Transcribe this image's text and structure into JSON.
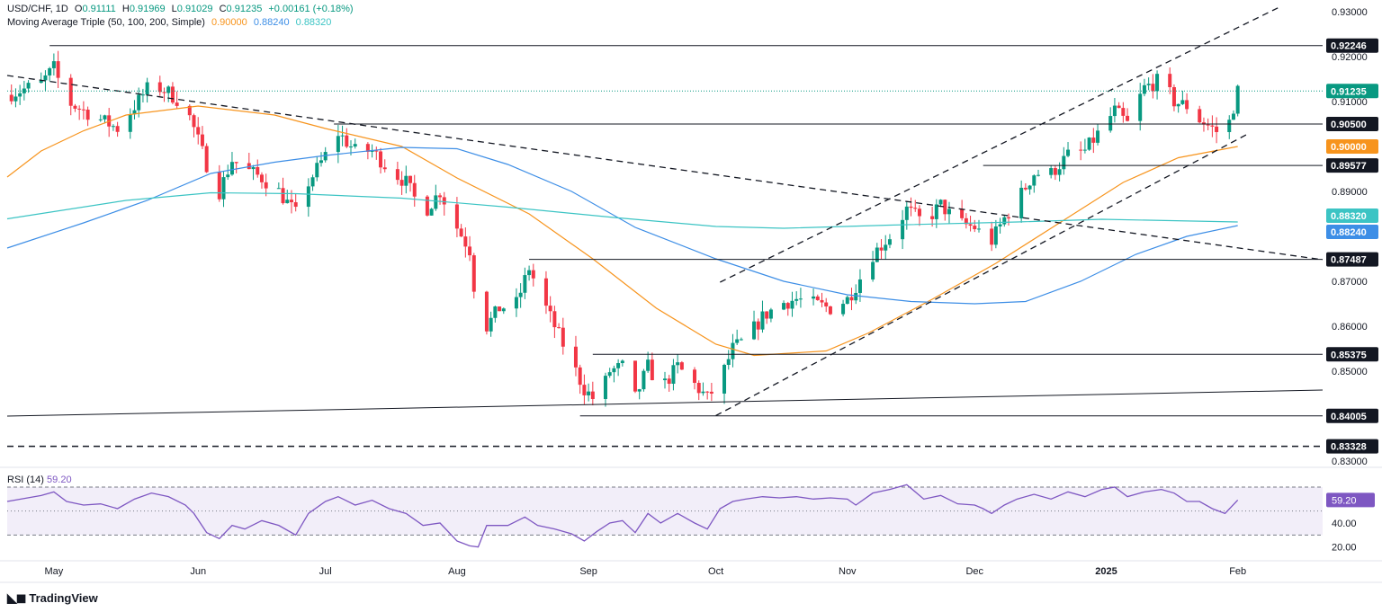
{
  "header": {
    "symbol": "USD/CHF, 1D",
    "open_label": "O",
    "open": "0.91111",
    "high_label": "H",
    "high": "0.91969",
    "low_label": "L",
    "low": "0.91029",
    "close_label": "C",
    "close": "0.91235",
    "change": "+0.00161 (+0.18%)",
    "ma_label": "Moving Average Triple (50, 100, 200, Simple)",
    "ma50_value": "0.90000",
    "ma100_value": "0.88240",
    "ma200_value": "0.88320"
  },
  "rsi_header": {
    "label": "RSI (14)",
    "value": "59.20"
  },
  "branding": {
    "name": "TradingView"
  },
  "colors": {
    "up": "#089981",
    "down": "#f23645",
    "ma50": "#f7941d",
    "ma100": "#3d8ee6",
    "ma200": "#3cc4c4",
    "rsi": "#7e57c2",
    "rsi_band": "#ede7f6",
    "last_price": "#089981",
    "level": "#131722"
  },
  "chart_data": {
    "type": "candlestick",
    "title": "USD/CHF, 1D",
    "y_range": [
      0.829,
      0.931
    ],
    "y_ticks": [
      "0.93000",
      "0.92000",
      "0.91000",
      "0.90000",
      "0.89000",
      "0.87000",
      "0.86000",
      "0.85000",
      "0.83000"
    ],
    "x_ticks": [
      "May",
      "Jun",
      "Jul",
      "Aug",
      "Sep",
      "Oct",
      "Nov",
      "Dec",
      "2025",
      "Feb"
    ],
    "x_tick_days": [
      3,
      37,
      67,
      98,
      129,
      159,
      190,
      220,
      251,
      282
    ],
    "day_range": [
      -8,
      302
    ],
    "price_labels": [
      {
        "value": 0.92246,
        "text": "0.92246",
        "style": "dark"
      },
      {
        "value": 0.91235,
        "text": "0.91235",
        "style": "last"
      },
      {
        "value": 0.905,
        "text": "0.90500",
        "style": "dark"
      },
      {
        "value": 0.9,
        "text": "0.90000",
        "style": "ma50"
      },
      {
        "value": 0.89577,
        "text": "0.89577",
        "style": "dark"
      },
      {
        "value": 0.8832,
        "text": "0.88320",
        "style": "ma200"
      },
      {
        "value": 0.8824,
        "text": "0.88240",
        "style": "ma100"
      },
      {
        "value": 0.87487,
        "text": "0.87487",
        "style": "dark"
      },
      {
        "value": 0.85375,
        "text": "0.85375",
        "style": "dark"
      },
      {
        "value": 0.84005,
        "text": "0.84005",
        "style": "dark"
      },
      {
        "value": 0.83328,
        "text": "0.83328",
        "style": "dark"
      }
    ],
    "horizontal_levels": [
      {
        "value": 0.92246,
        "from_day": 2,
        "to_day": 302,
        "dash": false
      },
      {
        "value": 0.905,
        "from_day": 69,
        "to_day": 302,
        "dash": false
      },
      {
        "value": 0.89577,
        "from_day": 222,
        "to_day": 302,
        "dash": false
      },
      {
        "value": 0.87487,
        "from_day": 115,
        "to_day": 302,
        "dash": false
      },
      {
        "value": 0.85375,
        "from_day": 130,
        "to_day": 302,
        "dash": false
      },
      {
        "value": 0.84005,
        "from_day": 127,
        "to_day": 302,
        "dash": false
      },
      {
        "value": 0.83328,
        "from_day": -8,
        "to_day": 302,
        "dash": true
      }
    ],
    "trendlines": [
      {
        "from": [
          -8,
          0.9158
        ],
        "to": [
          302,
          0.8748
        ],
        "dash": true
      },
      {
        "from": [
          -8,
          0.84
        ],
        "to": [
          302,
          0.8458
        ],
        "dash": false
      },
      {
        "from": [
          159,
          0.8401
        ],
        "to": [
          284,
          0.9026
        ],
        "dash": true
      },
      {
        "from": [
          160,
          0.8698
        ],
        "to": [
          292,
          0.9311
        ],
        "dash": true
      }
    ],
    "ma_series": [
      {
        "name": "MA 50",
        "value": "0.90000",
        "points": [
          [
            -8,
            0.8932
          ],
          [
            0,
            0.899
          ],
          [
            10,
            0.9035
          ],
          [
            20,
            0.907
          ],
          [
            37,
            0.909
          ],
          [
            55,
            0.907
          ],
          [
            67,
            0.904
          ],
          [
            85,
            0.9
          ],
          [
            98,
            0.893
          ],
          [
            115,
            0.885
          ],
          [
            130,
            0.875
          ],
          [
            145,
            0.864
          ],
          [
            159,
            0.856
          ],
          [
            168,
            0.8535
          ],
          [
            185,
            0.8545
          ],
          [
            195,
            0.8585
          ],
          [
            210,
            0.866
          ],
          [
            225,
            0.874
          ],
          [
            240,
            0.883
          ],
          [
            255,
            0.892
          ],
          [
            268,
            0.8975
          ],
          [
            282,
            0.9
          ]
        ]
      },
      {
        "name": "MA 100",
        "value": "0.88240",
        "points": [
          [
            -8,
            0.8774
          ],
          [
            10,
            0.883
          ],
          [
            25,
            0.888
          ],
          [
            40,
            0.894
          ],
          [
            55,
            0.8965
          ],
          [
            67,
            0.898
          ],
          [
            85,
            0.8998
          ],
          [
            98,
            0.8995
          ],
          [
            110,
            0.896
          ],
          [
            125,
            0.89
          ],
          [
            140,
            0.882
          ],
          [
            159,
            0.875
          ],
          [
            175,
            0.87
          ],
          [
            190,
            0.867
          ],
          [
            205,
            0.8655
          ],
          [
            220,
            0.865
          ],
          [
            232,
            0.8655
          ],
          [
            245,
            0.87
          ],
          [
            258,
            0.876
          ],
          [
            270,
            0.88
          ],
          [
            282,
            0.8824
          ]
        ]
      },
      {
        "name": "MA 200",
        "value": "0.88320",
        "points": [
          [
            -8,
            0.8839
          ],
          [
            20,
            0.888
          ],
          [
            40,
            0.8897
          ],
          [
            60,
            0.8895
          ],
          [
            85,
            0.8885
          ],
          [
            110,
            0.8865
          ],
          [
            135,
            0.8842
          ],
          [
            159,
            0.8822
          ],
          [
            175,
            0.8818
          ],
          [
            200,
            0.8825
          ],
          [
            230,
            0.8832
          ],
          [
            250,
            0.8838
          ],
          [
            282,
            0.8832
          ]
        ]
      }
    ],
    "rsi": {
      "value": "59.20",
      "range": [
        10,
        85
      ],
      "levels": [
        70,
        50,
        30
      ],
      "ticks": [
        "40.00",
        "20.00"
      ],
      "points": [
        [
          -8,
          58
        ],
        [
          0,
          63
        ],
        [
          3,
          66
        ],
        [
          6,
          58
        ],
        [
          10,
          55
        ],
        [
          14,
          56
        ],
        [
          18,
          52
        ],
        [
          22,
          60
        ],
        [
          26,
          65
        ],
        [
          30,
          62
        ],
        [
          34,
          55
        ],
        [
          36,
          48
        ],
        [
          39,
          32
        ],
        [
          42,
          27
        ],
        [
          45,
          38
        ],
        [
          48,
          35
        ],
        [
          52,
          42
        ],
        [
          56,
          38
        ],
        [
          60,
          30
        ],
        [
          63,
          48
        ],
        [
          67,
          58
        ],
        [
          70,
          62
        ],
        [
          74,
          55
        ],
        [
          78,
          59
        ],
        [
          82,
          52
        ],
        [
          86,
          48
        ],
        [
          90,
          38
        ],
        [
          94,
          40
        ],
        [
          98,
          25
        ],
        [
          101,
          21
        ],
        [
          103,
          20
        ],
        [
          105,
          38
        ],
        [
          110,
          38
        ],
        [
          114,
          45
        ],
        [
          117,
          38
        ],
        [
          121,
          35
        ],
        [
          125,
          31
        ],
        [
          128,
          25
        ],
        [
          131,
          33
        ],
        [
          134,
          40
        ],
        [
          137,
          42
        ],
        [
          140,
          32
        ],
        [
          143,
          48
        ],
        [
          146,
          40
        ],
        [
          150,
          48
        ],
        [
          154,
          40
        ],
        [
          157,
          35
        ],
        [
          160,
          52
        ],
        [
          163,
          58
        ],
        [
          166,
          60
        ],
        [
          170,
          62
        ],
        [
          174,
          61
        ],
        [
          178,
          62
        ],
        [
          182,
          60
        ],
        [
          186,
          61
        ],
        [
          190,
          60
        ],
        [
          192,
          55
        ],
        [
          196,
          65
        ],
        [
          200,
          68
        ],
        [
          204,
          72
        ],
        [
          208,
          60
        ],
        [
          212,
          63
        ],
        [
          216,
          56
        ],
        [
          220,
          55
        ],
        [
          222,
          52
        ],
        [
          224,
          48
        ],
        [
          227,
          55
        ],
        [
          230,
          60
        ],
        [
          234,
          64
        ],
        [
          238,
          60
        ],
        [
          242,
          66
        ],
        [
          246,
          62
        ],
        [
          250,
          68
        ],
        [
          253,
          70
        ],
        [
          256,
          62
        ],
        [
          260,
          66
        ],
        [
          264,
          68
        ],
        [
          267,
          65
        ],
        [
          270,
          58
        ],
        [
          273,
          58
        ],
        [
          276,
          52
        ],
        [
          279,
          48
        ],
        [
          282,
          59.2
        ]
      ]
    },
    "candles_generated": "ohlc per trading day, seeded reconstruction of visible path"
  }
}
